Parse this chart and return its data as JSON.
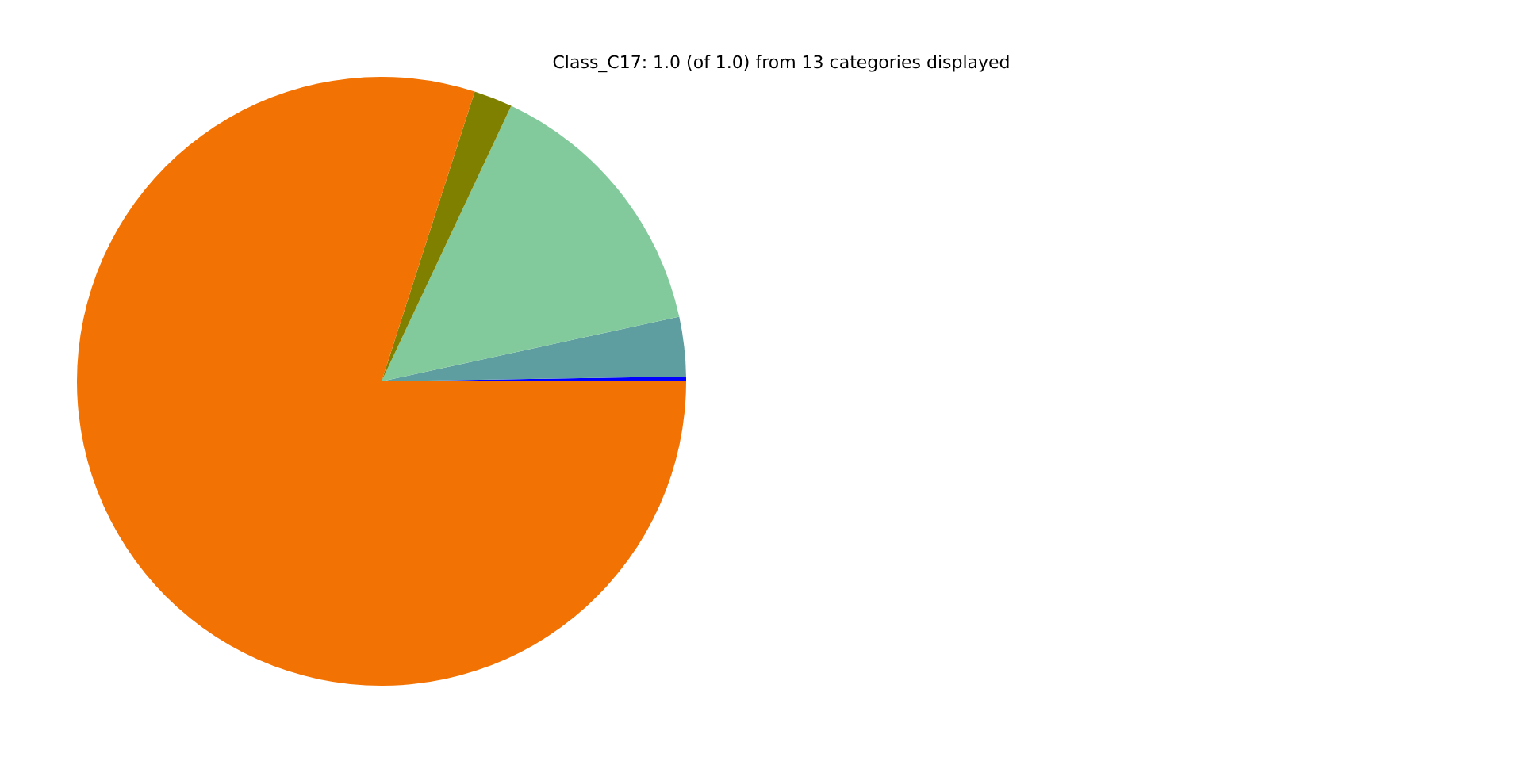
{
  "chart_data": {
    "type": "pie",
    "title": "Class_C17: 1.0 (of 1.0) from 13 categories displayed",
    "categories": [
      null,
      null,
      null,
      null,
      null
    ],
    "values": [
      0.25,
      3.15,
      14.6,
      2.05,
      79.95
    ],
    "colors": [
      "#0000ff",
      "#5f9ea0",
      "#82ca9c",
      "#808000",
      "#f27203"
    ]
  }
}
